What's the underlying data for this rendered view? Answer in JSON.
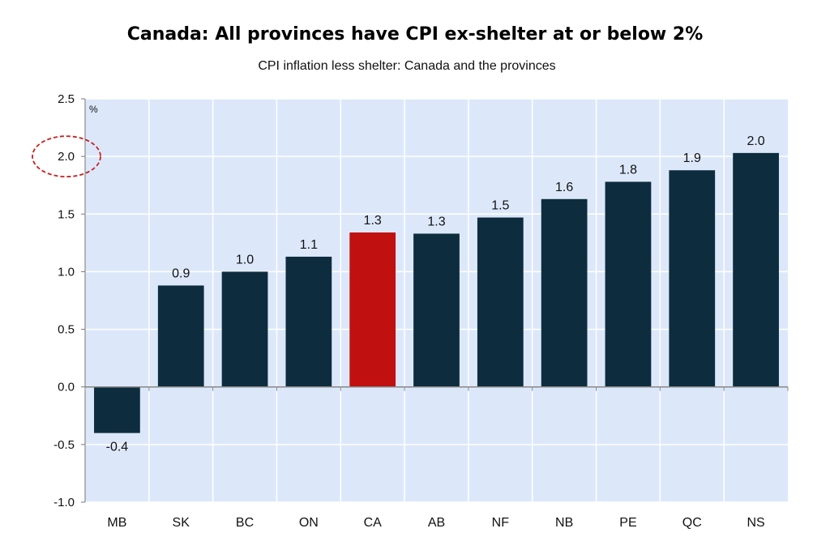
{
  "chart_data": {
    "type": "bar",
    "title": "Canada: All provinces have CPI ex-shelter at or below 2%",
    "subtitle": "CPI inflation less shelter: Canada and the provinces",
    "ylabel": "%",
    "xlabel": "",
    "ylim": [
      -1.0,
      2.5
    ],
    "yticks": [
      -1.0,
      -0.5,
      0.0,
      0.5,
      1.0,
      1.5,
      2.0,
      2.5
    ],
    "ytick_labels": [
      "-1.0",
      "-0.5",
      "0.0",
      "0.5",
      "1.0",
      "1.5",
      "2.0",
      "2.5"
    ],
    "categories": [
      "MB",
      "SK",
      "BC",
      "ON",
      "CA",
      "AB",
      "NF",
      "NB",
      "PE",
      "QC",
      "NS"
    ],
    "values": [
      -0.4,
      0.88,
      1.0,
      1.13,
      1.34,
      1.33,
      1.47,
      1.63,
      1.78,
      1.88,
      2.03
    ],
    "data_labels": [
      "-0.4",
      "0.9",
      "1.0",
      "1.1",
      "1.3",
      "1.3",
      "1.5",
      "1.6",
      "1.8",
      "1.9",
      "2.0"
    ],
    "highlight_category": "CA",
    "grid": true,
    "legend": "none",
    "annotation": "dashed red ellipse around 2.0 tick",
    "colors": {
      "bar": "#0d2d3e",
      "highlight": "#c01010",
      "plot_background": "#dce8fa",
      "grid": "#ffffff",
      "annotation": "#c82020"
    }
  }
}
